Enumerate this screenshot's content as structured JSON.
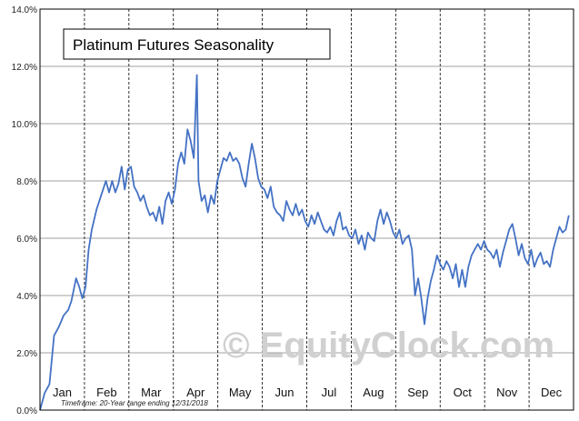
{
  "chart_data": {
    "type": "line",
    "title": "Platinum Futures Seasonality",
    "footnote": "Timeframe:  20-Year range ending 12/31/2018",
    "watermark": "© EquityClock.com",
    "xlabel": "",
    "ylabel": "",
    "ylim": [
      0,
      14
    ],
    "y_tick_labels": [
      "0.0%",
      "2.0%",
      "4.0%",
      "6.0%",
      "8.0%",
      "10.0%",
      "12.0%",
      "14.0%"
    ],
    "month_labels": [
      "Jan",
      "Feb",
      "Mar",
      "Apr",
      "May",
      "Jun",
      "Jul",
      "Aug",
      "Sep",
      "Oct",
      "Nov",
      "Dec"
    ],
    "grid": {
      "horizontal": true,
      "vertical_month_dividers": "dashed"
    },
    "line_color": "#4472c4",
    "series": [
      {
        "values": [
          [
            0,
            0.0
          ],
          [
            3,
            0.6
          ],
          [
            6,
            0.9
          ],
          [
            9,
            2.6
          ],
          [
            12,
            2.9
          ],
          [
            15,
            3.3
          ],
          [
            18,
            3.5
          ],
          [
            20,
            3.8
          ],
          [
            23,
            4.6
          ],
          [
            25,
            4.3
          ],
          [
            27,
            3.9
          ],
          [
            29,
            4.3
          ],
          [
            31,
            5.6
          ],
          [
            33,
            6.3
          ],
          [
            36,
            7.0
          ],
          [
            39,
            7.5
          ],
          [
            42,
            8.0
          ],
          [
            44,
            7.6
          ],
          [
            46,
            8.0
          ],
          [
            48,
            7.6
          ],
          [
            50,
            7.9
          ],
          [
            52,
            8.5
          ],
          [
            54,
            7.7
          ],
          [
            56,
            8.4
          ],
          [
            58,
            8.5
          ],
          [
            60,
            7.8
          ],
          [
            62,
            7.6
          ],
          [
            64,
            7.3
          ],
          [
            66,
            7.5
          ],
          [
            68,
            7.1
          ],
          [
            70,
            6.8
          ],
          [
            72,
            6.9
          ],
          [
            74,
            6.6
          ],
          [
            76,
            7.1
          ],
          [
            78,
            6.5
          ],
          [
            80,
            7.3
          ],
          [
            82,
            7.6
          ],
          [
            84,
            7.2
          ],
          [
            86,
            7.7
          ],
          [
            88,
            8.6
          ],
          [
            90,
            9.0
          ],
          [
            92,
            8.6
          ],
          [
            94,
            9.8
          ],
          [
            96,
            9.4
          ],
          [
            98,
            8.8
          ],
          [
            100,
            11.7
          ],
          [
            101,
            8.0
          ],
          [
            103,
            7.3
          ],
          [
            105,
            7.5
          ],
          [
            107,
            6.9
          ],
          [
            109,
            7.5
          ],
          [
            111,
            7.2
          ],
          [
            113,
            8.0
          ],
          [
            115,
            8.4
          ],
          [
            117,
            8.8
          ],
          [
            119,
            8.7
          ],
          [
            121,
            9.0
          ],
          [
            123,
            8.7
          ],
          [
            125,
            8.8
          ],
          [
            127,
            8.6
          ],
          [
            129,
            8.1
          ],
          [
            131,
            7.8
          ],
          [
            133,
            8.6
          ],
          [
            135,
            9.3
          ],
          [
            137,
            8.8
          ],
          [
            139,
            8.1
          ],
          [
            141,
            7.8
          ],
          [
            143,
            7.7
          ],
          [
            145,
            7.4
          ],
          [
            147,
            7.8
          ],
          [
            149,
            7.1
          ],
          [
            151,
            6.9
          ],
          [
            153,
            6.8
          ],
          [
            155,
            6.6
          ],
          [
            157,
            7.3
          ],
          [
            159,
            7.0
          ],
          [
            161,
            6.8
          ],
          [
            163,
            7.2
          ],
          [
            165,
            6.8
          ],
          [
            167,
            7.0
          ],
          [
            169,
            6.6
          ],
          [
            171,
            6.4
          ],
          [
            173,
            6.8
          ],
          [
            175,
            6.5
          ],
          [
            177,
            6.9
          ],
          [
            179,
            6.6
          ],
          [
            181,
            6.3
          ],
          [
            183,
            6.2
          ],
          [
            185,
            6.4
          ],
          [
            187,
            6.1
          ],
          [
            189,
            6.6
          ],
          [
            191,
            6.9
          ],
          [
            193,
            6.3
          ],
          [
            195,
            6.4
          ],
          [
            197,
            6.1
          ],
          [
            199,
            6.0
          ],
          [
            201,
            6.3
          ],
          [
            203,
            5.8
          ],
          [
            205,
            6.1
          ],
          [
            207,
            5.6
          ],
          [
            209,
            6.2
          ],
          [
            211,
            6.0
          ],
          [
            213,
            5.9
          ],
          [
            215,
            6.6
          ],
          [
            217,
            7.0
          ],
          [
            219,
            6.5
          ],
          [
            221,
            6.9
          ],
          [
            223,
            6.6
          ],
          [
            225,
            6.2
          ],
          [
            227,
            6.0
          ],
          [
            229,
            6.3
          ],
          [
            231,
            5.8
          ],
          [
            233,
            6.0
          ],
          [
            235,
            6.1
          ],
          [
            237,
            5.6
          ],
          [
            239,
            4.0
          ],
          [
            241,
            4.6
          ],
          [
            243,
            3.9
          ],
          [
            245,
            3.0
          ],
          [
            247,
            3.9
          ],
          [
            249,
            4.5
          ],
          [
            251,
            4.9
          ],
          [
            253,
            5.4
          ],
          [
            255,
            5.1
          ],
          [
            257,
            4.9
          ],
          [
            259,
            5.2
          ],
          [
            261,
            5.0
          ],
          [
            263,
            4.6
          ],
          [
            265,
            5.1
          ],
          [
            267,
            4.3
          ],
          [
            269,
            4.9
          ],
          [
            271,
            4.3
          ],
          [
            273,
            5.0
          ],
          [
            275,
            5.4
          ],
          [
            277,
            5.6
          ],
          [
            279,
            5.8
          ],
          [
            281,
            5.6
          ],
          [
            283,
            5.9
          ],
          [
            285,
            5.6
          ],
          [
            287,
            5.5
          ],
          [
            289,
            5.3
          ],
          [
            291,
            5.6
          ],
          [
            293,
            5.0
          ],
          [
            295,
            5.5
          ],
          [
            297,
            5.9
          ],
          [
            299,
            6.3
          ],
          [
            301,
            6.5
          ],
          [
            303,
            6.0
          ],
          [
            305,
            5.4
          ],
          [
            307,
            5.8
          ],
          [
            309,
            5.3
          ],
          [
            311,
            5.1
          ],
          [
            313,
            5.6
          ],
          [
            315,
            5.0
          ],
          [
            317,
            5.3
          ],
          [
            319,
            5.5
          ],
          [
            321,
            5.1
          ],
          [
            323,
            5.2
          ],
          [
            325,
            5.0
          ],
          [
            327,
            5.6
          ],
          [
            329,
            6.0
          ],
          [
            331,
            6.4
          ],
          [
            333,
            6.2
          ],
          [
            335,
            6.3
          ],
          [
            337,
            6.8
          ]
        ]
      }
    ]
  }
}
